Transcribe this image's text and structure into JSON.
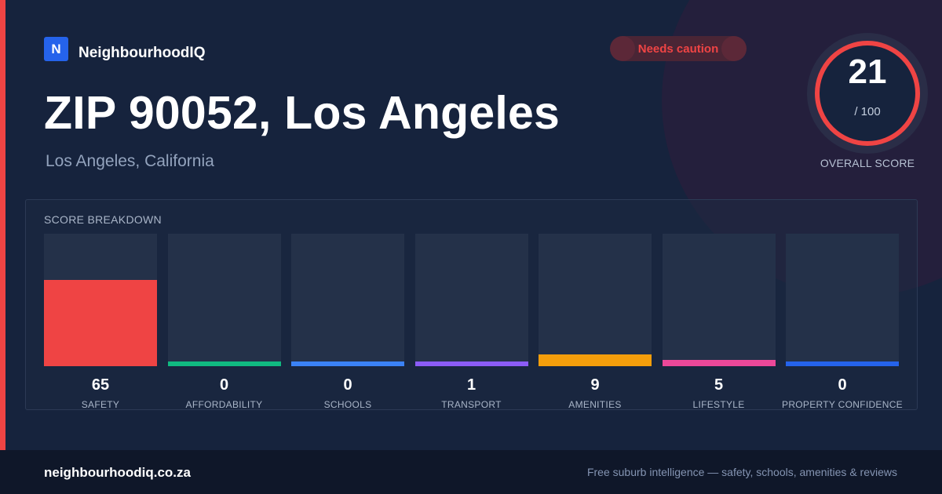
{
  "brand": {
    "logo_letter": "N",
    "name": "NeighbourhoodIQ"
  },
  "badge": {
    "label": "Needs caution",
    "color": "#ef4444"
  },
  "header": {
    "title": "ZIP 90052, Los Angeles",
    "subtitle": "Los Angeles, California"
  },
  "overall_score": {
    "value": "21",
    "max": "/ 100",
    "label": "OVERALL SCORE",
    "ring_color": "#ef4444"
  },
  "breakdown": {
    "title": "SCORE BREAKDOWN",
    "metrics": [
      {
        "value": "65",
        "label": "SAFETY",
        "color": "#ef4444"
      },
      {
        "value": "0",
        "label": "AFFORDABILITY",
        "color": "#10b981"
      },
      {
        "value": "0",
        "label": "SCHOOLS",
        "color": "#3b82f6"
      },
      {
        "value": "1",
        "label": "TRANSPORT",
        "color": "#8b5cf6"
      },
      {
        "value": "9",
        "label": "AMENITIES",
        "color": "#f59e0b"
      },
      {
        "value": "5",
        "label": "LIFESTYLE",
        "color": "#ec4899"
      },
      {
        "value": "0",
        "label": "PROPERTY CONFIDENCE",
        "color": "#2563eb"
      }
    ]
  },
  "footer": {
    "domain": "neighbourhoodiq.co.za",
    "tagline": "Free suburb intelligence — safety, schools, amenities & reviews"
  }
}
